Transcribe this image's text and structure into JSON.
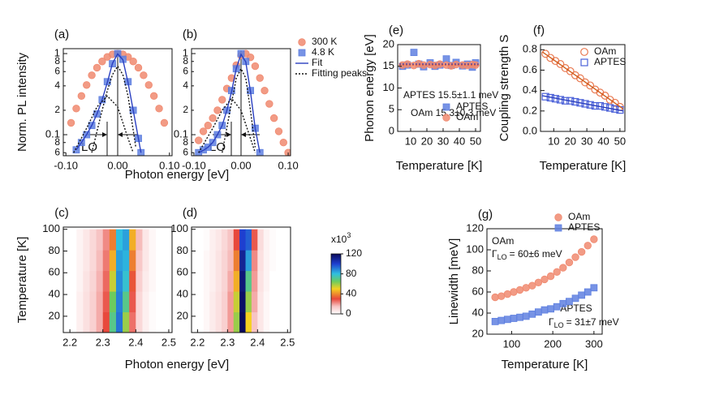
{
  "chart_data": [
    {
      "type": "line",
      "label": "(a)",
      "ylabel": "Norm. PL intensity",
      "xlabel": "Photon energy [eV]",
      "xlim": [
        -0.105,
        0.105
      ],
      "xticks": [
        {
          "value": -0.1,
          "label": "-0.10"
        },
        {
          "value": 0,
          "label": "0.00"
        },
        {
          "value": 0.1,
          "label": "0.10"
        }
      ],
      "ylog": true,
      "ylim": [
        0.055,
        1.15
      ],
      "yticks": [
        1,
        {
          "value": 0.8,
          "label": "8"
        },
        {
          "value": 0.6,
          "label": "6"
        },
        {
          "value": 0.4,
          "label": "4"
        },
        {
          "value": 0.2,
          "label": "2"
        },
        0.1,
        {
          "value": 0.08,
          "label": "8"
        },
        {
          "value": 0.06,
          "label": "6"
        }
      ],
      "annotations": [
        "LO"
      ],
      "series": [
        {
          "marker": "circle",
          "color": "#f08a70",
          "x": [
            -0.09,
            -0.08,
            -0.07,
            -0.06,
            -0.05,
            -0.04,
            -0.03,
            -0.02,
            -0.01,
            0,
            0.01,
            0.02,
            0.03,
            0.04,
            0.05,
            0.06,
            0.07,
            0.08,
            0.09
          ],
          "values": [
            0.14,
            0.21,
            0.3,
            0.41,
            0.54,
            0.67,
            0.8,
            0.91,
            0.98,
            1.0,
            0.98,
            0.91,
            0.8,
            0.67,
            0.54,
            0.41,
            0.3,
            0.21,
            0.14
          ]
        },
        {
          "marker": "square",
          "color": "#5f80e0",
          "x": [
            -0.08,
            -0.07,
            -0.06,
            -0.05,
            -0.04,
            -0.03,
            -0.02,
            -0.01,
            0,
            0.01,
            0.02,
            0.03,
            0.04,
            0.045
          ],
          "values": [
            0.065,
            0.08,
            0.1,
            0.13,
            0.18,
            0.27,
            0.45,
            0.75,
            1.0,
            0.85,
            0.45,
            0.2,
            0.09,
            0.06
          ]
        },
        {
          "marker": "line",
          "color": "#2a3fc0",
          "x": [
            -0.08,
            -0.07,
            -0.06,
            -0.05,
            -0.04,
            -0.03,
            -0.02,
            -0.01,
            0,
            0.01,
            0.02,
            0.03,
            0.04,
            0.045
          ],
          "values": [
            0.065,
            0.08,
            0.1,
            0.13,
            0.18,
            0.27,
            0.44,
            0.76,
            0.99,
            0.84,
            0.44,
            0.2,
            0.09,
            0.06
          ]
        },
        {
          "marker": "dotted",
          "color": "#111111",
          "x": [
            -0.05,
            -0.03,
            -0.02,
            -0.01,
            0,
            0.01,
            0.02,
            0.035,
            null,
            -0.085,
            -0.06,
            -0.04,
            -0.02,
            0,
            0.02,
            0.03
          ],
          "values": [
            0.06,
            0.2,
            0.35,
            0.55,
            0.7,
            0.55,
            0.3,
            0.07,
            null,
            0.06,
            0.12,
            0.22,
            0.3,
            0.22,
            0.09,
            0.06
          ]
        }
      ]
    },
    {
      "type": "line",
      "label": "(b)",
      "legend": "right",
      "xlim": [
        -0.105,
        0.105
      ],
      "xticks": [
        {
          "value": -0.1,
          "label": "-0.10"
        },
        {
          "value": 0,
          "label": "0.00"
        },
        {
          "value": 0.1,
          "label": "0.10"
        }
      ],
      "ylog": true,
      "ylim": [
        0.055,
        1.15
      ],
      "yticks": [
        1,
        {
          "value": 0.8,
          "label": "8"
        },
        {
          "value": 0.6,
          "label": "6"
        },
        {
          "value": 0.4,
          "label": "4"
        },
        {
          "value": 0.2,
          "label": "2"
        },
        0.1,
        {
          "value": 0.08,
          "label": "8"
        },
        {
          "value": 0.06,
          "label": "6"
        }
      ],
      "annotations": [
        "LO"
      ],
      "series": [
        {
          "name": "300 K",
          "marker": "circle",
          "color": "#f08a70",
          "x": [
            -0.09,
            -0.08,
            -0.07,
            -0.06,
            -0.05,
            -0.04,
            -0.03,
            -0.02,
            -0.01,
            0,
            0.01,
            0.02,
            0.03,
            0.04,
            0.05,
            0.06,
            0.07,
            0.08,
            0.09,
            0.1
          ],
          "values": [
            0.085,
            0.11,
            0.13,
            0.16,
            0.2,
            0.27,
            0.37,
            0.5,
            0.72,
            0.95,
            1.0,
            0.9,
            0.7,
            0.5,
            0.35,
            0.24,
            0.16,
            0.11,
            0.08,
            0.06
          ]
        },
        {
          "name": "4.8 K",
          "marker": "square",
          "color": "#5f80e0",
          "x": [
            -0.09,
            -0.08,
            -0.07,
            -0.06,
            -0.05,
            -0.04,
            -0.03,
            -0.02,
            -0.01,
            0,
            0.01,
            0.02,
            0.03,
            0.04
          ],
          "values": [
            0.06,
            0.065,
            0.07,
            0.08,
            0.1,
            0.13,
            0.2,
            0.35,
            0.65,
            1.0,
            0.8,
            0.35,
            0.12,
            0.06
          ]
        },
        {
          "name": "Fit",
          "marker": "line",
          "color": "#2a3fc0",
          "x": [
            -0.09,
            -0.08,
            -0.07,
            -0.06,
            -0.05,
            -0.04,
            -0.03,
            -0.02,
            -0.01,
            0,
            0.01,
            0.02,
            0.03,
            0.04
          ],
          "values": [
            0.06,
            0.064,
            0.07,
            0.08,
            0.1,
            0.13,
            0.2,
            0.34,
            0.66,
            0.98,
            0.79,
            0.34,
            0.12,
            0.06
          ]
        },
        {
          "name": "Fitting peaks",
          "marker": "dotted",
          "color": "#111111",
          "x": [
            -0.04,
            -0.02,
            -0.01,
            0,
            0.01,
            0.02,
            0.03,
            null,
            -0.09,
            -0.06,
            -0.04,
            -0.02,
            0,
            0.02,
            0.03
          ],
          "values": [
            0.06,
            0.25,
            0.5,
            0.65,
            0.5,
            0.2,
            0.07,
            null,
            0.06,
            0.12,
            0.2,
            0.28,
            0.2,
            0.09,
            0.06
          ]
        }
      ]
    },
    {
      "type": "heatmap",
      "label": "(c)",
      "ylabel": "Temperature [K]",
      "xlabel": "Photon energy [eV]",
      "xlim": [
        2.18,
        2.51
      ],
      "xticks": [
        2.2,
        2.3,
        2.4,
        2.5
      ],
      "ylim": [
        5,
        102
      ],
      "yticks": [
        20,
        40,
        60,
        80,
        100
      ],
      "x_bins": [
        2.22,
        2.24,
        2.26,
        2.28,
        2.3,
        2.32,
        2.34,
        2.36,
        2.38,
        2.4,
        2.42,
        2.44,
        2.46
      ],
      "y_bins": [
        5,
        24,
        43,
        62,
        81,
        100
      ],
      "zlim": [
        0,
        120
      ],
      "colorscale": [
        [
          0,
          "#ffffff"
        ],
        [
          15,
          "#f7c4c4"
        ],
        [
          30,
          "#e8483c"
        ],
        [
          50,
          "#f5d020"
        ],
        [
          65,
          "#6ccb5f"
        ],
        [
          80,
          "#2fc0e0"
        ],
        [
          100,
          "#1e3fd0"
        ],
        [
          120,
          "#0a0a5a"
        ]
      ],
      "z": [
        [
          4,
          8,
          12,
          18,
          30,
          70,
          92,
          60,
          25,
          10,
          4,
          1
        ],
        [
          4,
          8,
          12,
          18,
          28,
          65,
          90,
          70,
          28,
          10,
          4,
          1
        ],
        [
          3,
          7,
          11,
          17,
          26,
          55,
          88,
          78,
          32,
          12,
          5,
          2
        ],
        [
          3,
          6,
          10,
          16,
          24,
          45,
          85,
          82,
          38,
          14,
          6,
          2
        ],
        [
          3,
          6,
          10,
          15,
          22,
          38,
          80,
          85,
          45,
          16,
          6,
          2
        ]
      ]
    },
    {
      "type": "heatmap",
      "label": "(d)",
      "xlim": [
        2.18,
        2.51
      ],
      "xticks": [
        2.2,
        2.3,
        2.4,
        2.5
      ],
      "ylim": [
        5,
        102
      ],
      "yticks": [
        20,
        40,
        60,
        80,
        100
      ],
      "x_bins": [
        2.22,
        2.24,
        2.26,
        2.28,
        2.3,
        2.32,
        2.34,
        2.36,
        2.38,
        2.4,
        2.42,
        2.44,
        2.46
      ],
      "y_bins": [
        5,
        24,
        43,
        62,
        81,
        100
      ],
      "zlim": [
        0,
        120
      ],
      "colorscale": [
        [
          0,
          "#ffffff"
        ],
        [
          15,
          "#f7c4c4"
        ],
        [
          30,
          "#e8483c"
        ],
        [
          50,
          "#f5d020"
        ],
        [
          65,
          "#6ccb5f"
        ],
        [
          80,
          "#2fc0e0"
        ],
        [
          100,
          "#1e3fd0"
        ],
        [
          120,
          "#0a0a5a"
        ]
      ],
      "colorbar_title": "x10",
      "colorbar_exp": "3",
      "colorbar_ticks": [
        0,
        40,
        80,
        120
      ],
      "z": [
        [
          2,
          5,
          8,
          12,
          20,
          60,
          120,
          50,
          15,
          6,
          2,
          0
        ],
        [
          2,
          5,
          8,
          12,
          20,
          55,
          118,
          60,
          18,
          6,
          2,
          0
        ],
        [
          2,
          4,
          7,
          11,
          18,
          45,
          115,
          70,
          20,
          7,
          3,
          0
        ],
        [
          2,
          4,
          7,
          11,
          16,
          38,
          110,
          85,
          22,
          8,
          3,
          1
        ],
        [
          1,
          4,
          6,
          10,
          15,
          30,
          100,
          95,
          28,
          9,
          3,
          1
        ]
      ]
    },
    {
      "type": "scatter",
      "label": "(e)",
      "xlabel": "Temperature [K]",
      "ylabel": "Phonon energy [eV]",
      "legend": "lower right",
      "xlim": [
        2,
        53
      ],
      "xticks": [
        10,
        20,
        30,
        40,
        50
      ],
      "ylim": [
        0,
        20
      ],
      "yticks": [
        0,
        5,
        10,
        15,
        20
      ],
      "annotations": [
        "APTES 15.5±1.1 meV",
        "OAm 15.3±0.3 meV"
      ],
      "series": [
        {
          "name": "APTES",
          "marker": "square",
          "color": "#5f80e0",
          "x": [
            5,
            8,
            12,
            15,
            18,
            22,
            25,
            28,
            32,
            35,
            38,
            42,
            45,
            48,
            50
          ],
          "values": [
            15.0,
            15.3,
            18.2,
            15.5,
            14.9,
            15.8,
            15.0,
            15.3,
            16.7,
            15.2,
            15.9,
            15.1,
            15.5,
            14.8,
            15.8
          ]
        },
        {
          "name": "OAm",
          "marker": "circle",
          "color": "#f08a70",
          "x": [
            5,
            8,
            12,
            15,
            18,
            22,
            25,
            28,
            32,
            35,
            38,
            42,
            45,
            48,
            50
          ],
          "values": [
            15.3,
            15.5,
            15.2,
            15.6,
            15.3,
            15.4,
            15.2,
            15.5,
            15.3,
            15.1,
            15.4,
            15.3,
            15.2,
            15.4,
            15.3
          ]
        },
        {
          "marker": "dotted",
          "color": "#2a3fc0",
          "x": [
            3,
            52
          ],
          "values": [
            15.5,
            15.5
          ]
        },
        {
          "marker": "dotted",
          "color": "#e06040",
          "x": [
            3,
            52
          ],
          "values": [
            15.3,
            15.3
          ]
        }
      ]
    },
    {
      "type": "scatter",
      "label": "(f)",
      "xlabel": "Temperature [K]",
      "ylabel": "Coupling strength S",
      "legend": "upper right",
      "xlim": [
        2,
        53
      ],
      "xticks": [
        10,
        20,
        30,
        40,
        50
      ],
      "ylim": [
        0,
        0.85
      ],
      "yticks": [
        {
          "value": 0,
          "label": "0.0"
        },
        0.2,
        0.4,
        0.6,
        0.8
      ],
      "series": [
        {
          "name": "OAm",
          "marker": "open-circle",
          "color": "#e8784f",
          "x": [
            5,
            8,
            11,
            14,
            17,
            20,
            23,
            26,
            29,
            32,
            35,
            38,
            41,
            44,
            47,
            50
          ],
          "values": [
            0.76,
            0.72,
            0.69,
            0.66,
            0.62,
            0.59,
            0.55,
            0.52,
            0.48,
            0.45,
            0.41,
            0.38,
            0.35,
            0.31,
            0.28,
            0.24
          ]
        },
        {
          "name": "APTES",
          "marker": "open-square",
          "color": "#4a60d8",
          "x": [
            5,
            8,
            11,
            14,
            17,
            20,
            23,
            26,
            29,
            32,
            35,
            38,
            41,
            44,
            47,
            50
          ],
          "values": [
            0.34,
            0.33,
            0.32,
            0.31,
            0.3,
            0.3,
            0.29,
            0.28,
            0.27,
            0.26,
            0.25,
            0.25,
            0.24,
            0.23,
            0.22,
            0.21
          ]
        },
        {
          "marker": "line",
          "color": "#d06020",
          "x": [
            3,
            52
          ],
          "values": [
            0.78,
            0.22
          ]
        },
        {
          "marker": "line",
          "color": "#2a3fc0",
          "x": [
            3,
            52
          ],
          "values": [
            0.35,
            0.2
          ]
        }
      ]
    },
    {
      "type": "scatter",
      "label": "(g)",
      "xlabel": "Temperature [K]",
      "ylabel": "Linewidth [meV]",
      "legend": "top",
      "xlim": [
        40,
        320
      ],
      "xticks": [
        100,
        200,
        300
      ],
      "ylim": [
        20,
        120
      ],
      "yticks": [
        20,
        40,
        60,
        80,
        100,
        120
      ],
      "annotations": [
        {
          "text": "OAm"
        },
        {
          "symbol": "Γ",
          "sub": "LO",
          "text": "= 60±6 meV"
        },
        {
          "text": "APTES"
        },
        {
          "symbol": "Γ",
          "sub": "LO",
          "text": "= 31±7 meV"
        }
      ],
      "series": [
        {
          "name": "OAm",
          "marker": "circle",
          "color": "#f08a70",
          "x": [
            60,
            75,
            90,
            105,
            120,
            135,
            150,
            165,
            180,
            195,
            210,
            225,
            240,
            255,
            270,
            285,
            300
          ],
          "values": [
            55,
            56,
            58,
            60,
            62,
            64,
            66,
            69,
            72,
            75,
            79,
            83,
            88,
            93,
            98,
            104,
            110
          ]
        },
        {
          "name": "APTES",
          "marker": "square",
          "color": "#5f80e0",
          "x": [
            60,
            75,
            90,
            105,
            120,
            135,
            150,
            165,
            180,
            195,
            210,
            225,
            240,
            255,
            270,
            285,
            300
          ],
          "values": [
            32,
            33,
            34,
            35,
            36,
            37,
            39,
            41,
            43,
            44,
            46,
            49,
            51,
            54,
            57,
            60,
            64
          ]
        }
      ]
    }
  ]
}
